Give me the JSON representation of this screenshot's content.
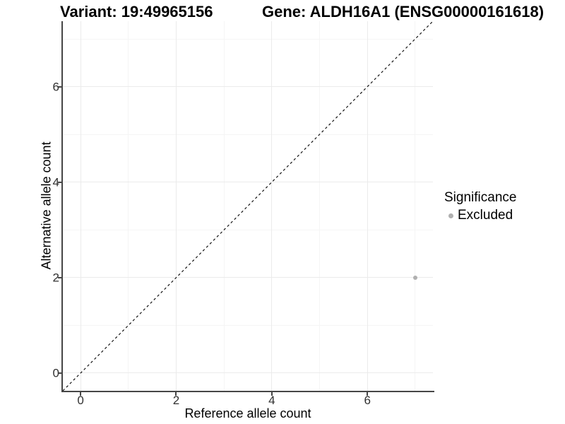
{
  "chart_data": {
    "type": "scatter",
    "titles": {
      "variant": "Variant: 19:49965156",
      "gene": "Gene: ALDH16A1 (ENSG00000161618)"
    },
    "xlabel": "Reference allele count",
    "ylabel": "Alternative allele count",
    "xlim": [
      -0.37,
      7.37
    ],
    "ylim": [
      -0.37,
      7.37
    ],
    "x_major_ticks": [
      0,
      2,
      4,
      6
    ],
    "y_major_ticks": [
      0,
      2,
      4,
      6
    ],
    "x_minor_gridlines": [
      1,
      3,
      5,
      7
    ],
    "y_minor_gridlines": [
      1,
      3,
      5,
      7
    ],
    "grid": true,
    "legend": {
      "title": "Significance",
      "position": "right",
      "items": [
        {
          "label": "Excluded",
          "color": "#b0b0b0"
        }
      ]
    },
    "reference_line": {
      "type": "identity",
      "slope": 1,
      "intercept": 0,
      "style": "dashed",
      "color": "#000000"
    },
    "series": [
      {
        "name": "Excluded",
        "color": "#b0b0b0",
        "points": [
          {
            "x": 7,
            "y": 2
          }
        ]
      }
    ]
  }
}
